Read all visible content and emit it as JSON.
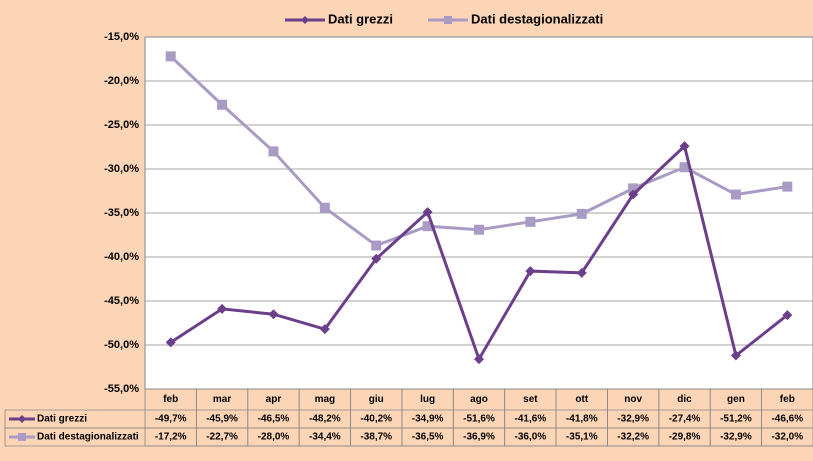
{
  "chart_data": {
    "type": "line",
    "categories": [
      "feb",
      "mar",
      "apr",
      "mag",
      "giu",
      "lug",
      "ago",
      "set",
      "ott",
      "nov",
      "dic",
      "gen",
      "feb"
    ],
    "series": [
      {
        "name": "Dati grezzi",
        "color": "#6b3f8a",
        "marker": "diamond",
        "values": [
          -49.7,
          -45.9,
          -46.5,
          -48.2,
          -40.2,
          -34.9,
          -51.6,
          -41.6,
          -41.8,
          -32.9,
          -27.4,
          -51.2,
          -46.6
        ],
        "value_labels": [
          "-49,7%",
          "-45,9%",
          "-46,5%",
          "-48,2%",
          "-40,2%",
          "-34,9%",
          "-51,6%",
          "-41,6%",
          "-41,8%",
          "-32,9%",
          "-27,4%",
          "-51,2%",
          "-46,6%"
        ]
      },
      {
        "name": "Dati destagionalizzati",
        "color": "#a99bc4",
        "marker": "square",
        "values": [
          -17.2,
          -22.7,
          -28.0,
          -34.4,
          -38.7,
          -36.5,
          -36.9,
          -36.0,
          -35.1,
          -32.2,
          -29.8,
          -32.9,
          -32.0
        ],
        "value_labels": [
          "-17,2%",
          "-22,7%",
          "-28,0%",
          "-34,4%",
          "-38,7%",
          "-36,5%",
          "-36,9%",
          "-36,0%",
          "-35,1%",
          "-32,2%",
          "-29,8%",
          "-32,9%",
          "-32,0%"
        ]
      }
    ],
    "ylim": [
      -55,
      -15
    ],
    "yticks": [
      {
        "value": -15,
        "label": "-15,0%"
      },
      {
        "value": -20,
        "label": "-20,0%"
      },
      {
        "value": -25,
        "label": "-25,0%"
      },
      {
        "value": -30,
        "label": "-30,0%"
      },
      {
        "value": -35,
        "label": "-35,0%"
      },
      {
        "value": -40,
        "label": "-40,0%"
      },
      {
        "value": -45,
        "label": "-45,0%"
      },
      {
        "value": -50,
        "label": "-50,0%"
      },
      {
        "value": -55,
        "label": "-55,0%"
      }
    ],
    "grid": true,
    "legend": "top",
    "data_table": true
  }
}
